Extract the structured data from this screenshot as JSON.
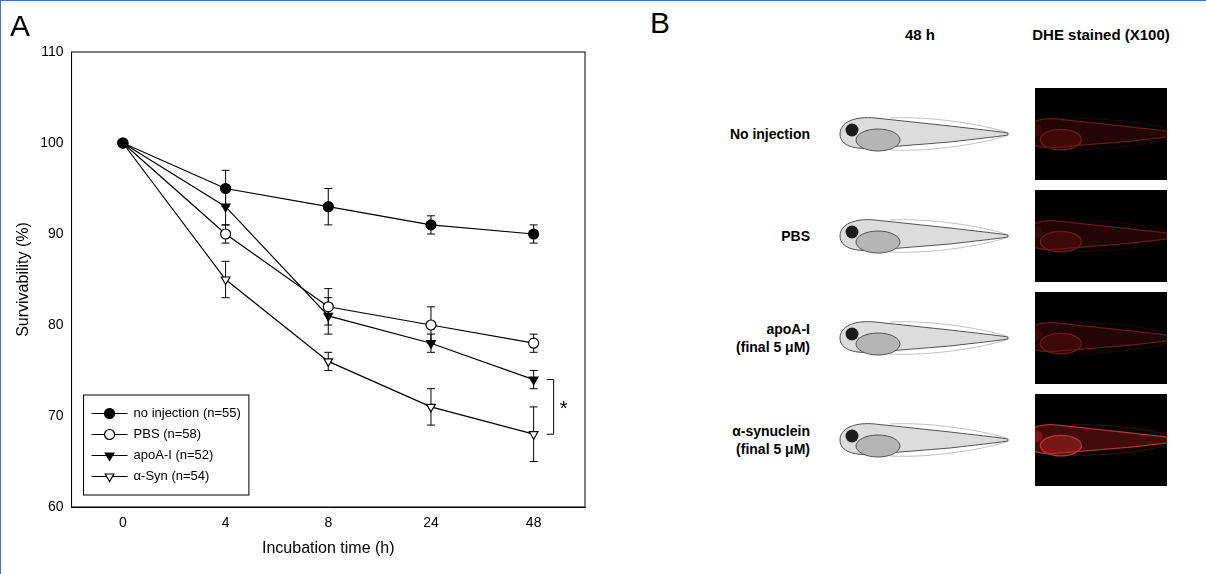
{
  "chart_data": {
    "type": "line",
    "panel": "A",
    "x_label": "Incubation time (h)",
    "y_label": "Survivability (%)",
    "categories": [
      "0",
      "4",
      "8",
      "24",
      "48"
    ],
    "ylim": [
      60,
      110
    ],
    "yticks": [
      60,
      70,
      80,
      90,
      100,
      110
    ],
    "grid": false,
    "legend": "lower left",
    "line_style": "solid",
    "series": [
      {
        "name": "no injection (n=55)",
        "color": "#000000",
        "marker": "circle",
        "values": [
          100,
          95,
          93,
          91,
          90
        ],
        "errors": [
          0,
          2,
          2,
          1,
          1
        ]
      },
      {
        "name": "PBS (n=58)",
        "color": "#000000",
        "marker": "open_circle",
        "values": [
          100,
          90,
          82,
          80,
          78
        ],
        "errors": [
          0,
          1,
          2,
          2,
          1
        ]
      },
      {
        "name": "apoA-I (n=52)",
        "color": "#000000",
        "marker": "triangle_down",
        "values": [
          100,
          93,
          81,
          78,
          74
        ],
        "errors": [
          0,
          2,
          2,
          1,
          1
        ]
      },
      {
        "name": "α-Syn (n=54)",
        "color": "#000000",
        "marker": "open_triangle_down",
        "values": [
          100,
          85,
          76,
          71,
          68
        ],
        "errors": [
          0,
          2,
          1,
          2,
          3
        ]
      }
    ],
    "annotations": [
      {
        "text": "*",
        "x": "48",
        "from": "apoA-I (n=52)",
        "to": "α-Syn (n=54)"
      }
    ]
  },
  "panel_b": {
    "panel": "B",
    "columns": [
      "48 h",
      "DHE stained (X100)"
    ],
    "rows": [
      {
        "label_lines": [
          "No injection"
        ]
      },
      {
        "label_lines": [
          "PBS"
        ]
      },
      {
        "label_lines": [
          "apoA-I",
          "(final 5 μM)"
        ]
      },
      {
        "label_lines": [
          "α-synuclein",
          "(final 5 μM)"
        ]
      }
    ]
  }
}
